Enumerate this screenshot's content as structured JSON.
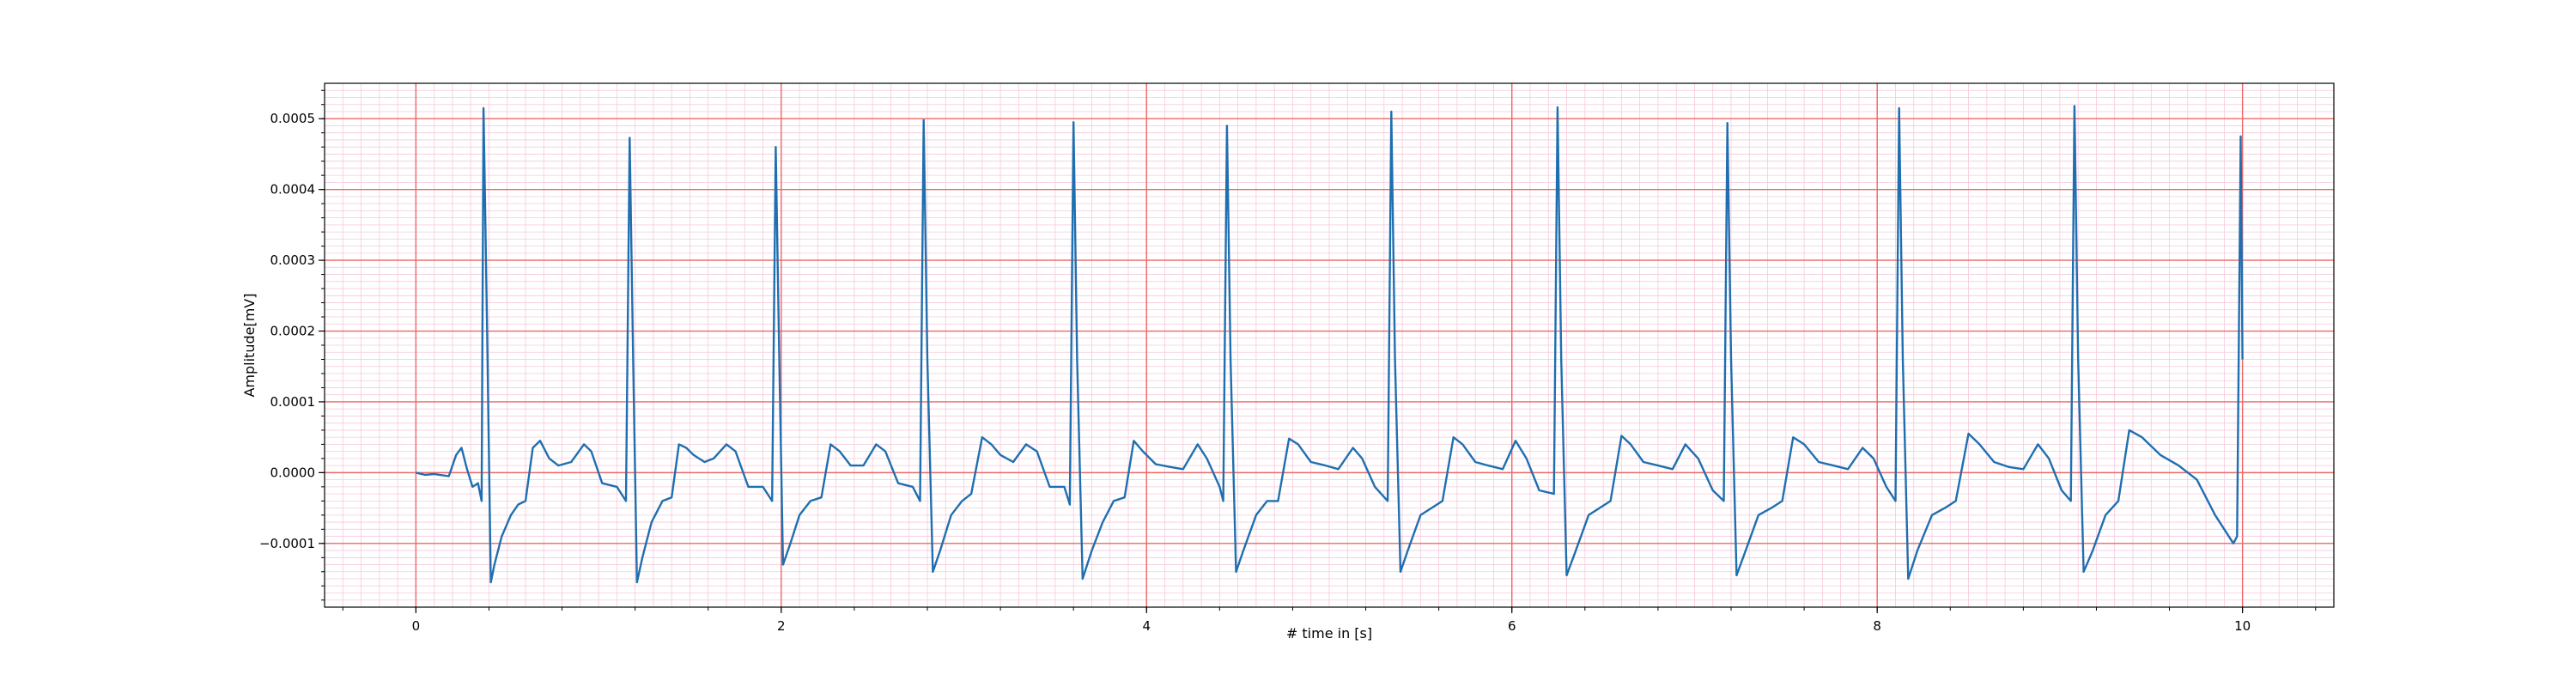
{
  "chart_data": {
    "type": "line",
    "title": "",
    "xlabel": "# time in [s]",
    "ylabel": "Amplitude[mV]",
    "xlim": [
      -0.5,
      10.5
    ],
    "ylim": [
      -0.00019,
      0.00055
    ],
    "x_ticks": [
      0,
      2,
      4,
      6,
      8,
      10
    ],
    "x_tick_labels": [
      "0",
      "2",
      "4",
      "6",
      "8",
      "10"
    ],
    "y_ticks": [
      -0.0001,
      0.0,
      0.0001,
      0.0002,
      0.0003,
      0.0004,
      0.0005
    ],
    "y_tick_labels": [
      "−0.0001",
      "0.0000",
      "0.0001",
      "0.0002",
      "0.0003",
      "0.0004",
      "0.0005"
    ],
    "grid": {
      "major": true,
      "minor": true,
      "major_x_step": 2,
      "major_y_step": 0.0001,
      "minor_x_step": 0.1,
      "minor_y_step": 1e-05
    },
    "colors": {
      "line": "#1f6fb0",
      "major_grid": "#ee6666",
      "minor_grid": "#f6c9dc",
      "axes": "#000000"
    },
    "r_peaks": [
      {
        "t": 0.37,
        "amp": 0.000515
      },
      {
        "t": 1.17,
        "amp": 0.000473
      },
      {
        "t": 1.97,
        "amp": 0.00046
      },
      {
        "t": 2.78,
        "amp": 0.000498
      },
      {
        "t": 3.6,
        "amp": 0.000495
      },
      {
        "t": 4.44,
        "amp": 0.00049
      },
      {
        "t": 5.34,
        "amp": 0.00051
      },
      {
        "t": 6.25,
        "amp": 0.000516
      },
      {
        "t": 7.18,
        "amp": 0.000494
      },
      {
        "t": 8.12,
        "amp": 0.000515
      },
      {
        "t": 9.08,
        "amp": 0.000518
      },
      {
        "t": 9.99,
        "amp": 0.000475
      }
    ],
    "series": [
      {
        "values": [
          [
            0.0,
            0.0
          ],
          [
            0.05,
            -3e-06
          ],
          [
            0.1,
            -2e-06
          ],
          [
            0.18,
            -5e-06
          ],
          [
            0.22,
            2.5e-05
          ],
          [
            0.25,
            3.5e-05
          ],
          [
            0.28,
            5e-06
          ],
          [
            0.31,
            -2e-05
          ],
          [
            0.34,
            -1.5e-05
          ],
          [
            0.36,
            -4e-05
          ],
          [
            0.37,
            0.000515
          ],
          [
            0.39,
            0.0002
          ],
          [
            0.41,
            -0.000155
          ],
          [
            0.43,
            -0.00013
          ],
          [
            0.47,
            -9e-05
          ],
          [
            0.52,
            -6e-05
          ],
          [
            0.56,
            -4.5e-05
          ],
          [
            0.6,
            -4e-05
          ],
          [
            0.64,
            3.5e-05
          ],
          [
            0.68,
            4.5e-05
          ],
          [
            0.73,
            2e-05
          ],
          [
            0.78,
            1e-05
          ],
          [
            0.85,
            1.5e-05
          ],
          [
            0.92,
            4e-05
          ],
          [
            0.96,
            3e-05
          ],
          [
            1.02,
            -1.5e-05
          ],
          [
            1.1,
            -2e-05
          ],
          [
            1.15,
            -4e-05
          ],
          [
            1.17,
            0.000473
          ],
          [
            1.19,
            0.00015
          ],
          [
            1.21,
            -0.000155
          ],
          [
            1.24,
            -0.00012
          ],
          [
            1.29,
            -7e-05
          ],
          [
            1.35,
            -4e-05
          ],
          [
            1.4,
            -3.5e-05
          ],
          [
            1.44,
            4e-05
          ],
          [
            1.48,
            3.5e-05
          ],
          [
            1.52,
            2.5e-05
          ],
          [
            1.58,
            1.5e-05
          ],
          [
            1.63,
            2e-05
          ],
          [
            1.7,
            4e-05
          ],
          [
            1.75,
            3e-05
          ],
          [
            1.82,
            -2e-05
          ],
          [
            1.9,
            -2e-05
          ],
          [
            1.95,
            -4e-05
          ],
          [
            1.97,
            0.00046
          ],
          [
            1.99,
            0.00015
          ],
          [
            2.01,
            -0.00013
          ],
          [
            2.05,
            -0.0001
          ],
          [
            2.1,
            -6e-05
          ],
          [
            2.16,
            -4e-05
          ],
          [
            2.22,
            -3.5e-05
          ],
          [
            2.27,
            4e-05
          ],
          [
            2.32,
            3e-05
          ],
          [
            2.38,
            1e-05
          ],
          [
            2.45,
            1e-05
          ],
          [
            2.52,
            4e-05
          ],
          [
            2.57,
            3e-05
          ],
          [
            2.64,
            -1.5e-05
          ],
          [
            2.72,
            -2e-05
          ],
          [
            2.76,
            -4e-05
          ],
          [
            2.78,
            0.000498
          ],
          [
            2.8,
            0.00016
          ],
          [
            2.83,
            -0.00014
          ],
          [
            2.87,
            -0.00011
          ],
          [
            2.93,
            -6e-05
          ],
          [
            2.99,
            -4e-05
          ],
          [
            3.04,
            -3e-05
          ],
          [
            3.1,
            5e-05
          ],
          [
            3.15,
            4e-05
          ],
          [
            3.2,
            2.5e-05
          ],
          [
            3.27,
            1.5e-05
          ],
          [
            3.34,
            4e-05
          ],
          [
            3.4,
            3e-05
          ],
          [
            3.47,
            -2e-05
          ],
          [
            3.55,
            -2e-05
          ],
          [
            3.58,
            -4.5e-05
          ],
          [
            3.6,
            0.000495
          ],
          [
            3.62,
            0.00016
          ],
          [
            3.65,
            -0.00015
          ],
          [
            3.7,
            -0.00011
          ],
          [
            3.76,
            -7e-05
          ],
          [
            3.82,
            -4e-05
          ],
          [
            3.88,
            -3.5e-05
          ],
          [
            3.93,
            4.5e-05
          ],
          [
            3.98,
            3e-05
          ],
          [
            4.05,
            1.2e-05
          ],
          [
            4.13,
            8e-06
          ],
          [
            4.2,
            5e-06
          ],
          [
            4.28,
            4e-05
          ],
          [
            4.33,
            2e-05
          ],
          [
            4.4,
            -2e-05
          ],
          [
            4.42,
            -4e-05
          ],
          [
            4.44,
            0.00049
          ],
          [
            4.46,
            0.00016
          ],
          [
            4.49,
            -0.00014
          ],
          [
            4.53,
            -0.00011
          ],
          [
            4.6,
            -6e-05
          ],
          [
            4.66,
            -4e-05
          ],
          [
            4.72,
            -4e-05
          ],
          [
            4.78,
            4.8e-05
          ],
          [
            4.83,
            4e-05
          ],
          [
            4.9,
            1.5e-05
          ],
          [
            4.98,
            1e-05
          ],
          [
            5.05,
            5e-06
          ],
          [
            5.13,
            3.5e-05
          ],
          [
            5.18,
            2e-05
          ],
          [
            5.25,
            -2e-05
          ],
          [
            5.32,
            -4e-05
          ],
          [
            5.34,
            0.00051
          ],
          [
            5.36,
            0.00016
          ],
          [
            5.39,
            -0.00014
          ],
          [
            5.43,
            -0.00011
          ],
          [
            5.5,
            -6e-05
          ],
          [
            5.56,
            -5e-05
          ],
          [
            5.62,
            -4e-05
          ],
          [
            5.68,
            5e-05
          ],
          [
            5.73,
            4e-05
          ],
          [
            5.8,
            1.5e-05
          ],
          [
            5.87,
            1e-05
          ],
          [
            5.95,
            5e-06
          ],
          [
            6.02,
            4.5e-05
          ],
          [
            6.08,
            2e-05
          ],
          [
            6.15,
            -2.5e-05
          ],
          [
            6.23,
            -3e-05
          ],
          [
            6.25,
            0.000516
          ],
          [
            6.27,
            0.00016
          ],
          [
            6.3,
            -0.000145
          ],
          [
            6.35,
            -0.00011
          ],
          [
            6.42,
            -6e-05
          ],
          [
            6.48,
            -5e-05
          ],
          [
            6.54,
            -4e-05
          ],
          [
            6.6,
            5.2e-05
          ],
          [
            6.65,
            4e-05
          ],
          [
            6.72,
            1.5e-05
          ],
          [
            6.8,
            1e-05
          ],
          [
            6.88,
            5e-06
          ],
          [
            6.95,
            4e-05
          ],
          [
            7.02,
            2e-05
          ],
          [
            7.1,
            -2.5e-05
          ],
          [
            7.16,
            -4e-05
          ],
          [
            7.18,
            0.000494
          ],
          [
            7.2,
            0.00016
          ],
          [
            7.23,
            -0.000145
          ],
          [
            7.28,
            -0.00011
          ],
          [
            7.35,
            -6e-05
          ],
          [
            7.42,
            -5e-05
          ],
          [
            7.48,
            -4e-05
          ],
          [
            7.54,
            5e-05
          ],
          [
            7.6,
            4e-05
          ],
          [
            7.68,
            1.5e-05
          ],
          [
            7.76,
            1e-05
          ],
          [
            7.84,
            5e-06
          ],
          [
            7.92,
            3.5e-05
          ],
          [
            7.98,
            2e-05
          ],
          [
            8.05,
            -2e-05
          ],
          [
            8.1,
            -4e-05
          ],
          [
            8.12,
            0.000515
          ],
          [
            8.14,
            0.00016
          ],
          [
            8.17,
            -0.00015
          ],
          [
            8.22,
            -0.00011
          ],
          [
            8.3,
            -6e-05
          ],
          [
            8.37,
            -5e-05
          ],
          [
            8.43,
            -4e-05
          ],
          [
            8.5,
            5.5e-05
          ],
          [
            8.56,
            4e-05
          ],
          [
            8.64,
            1.5e-05
          ],
          [
            8.72,
            8e-06
          ],
          [
            8.8,
            5e-06
          ],
          [
            8.88,
            4e-05
          ],
          [
            8.94,
            2e-05
          ],
          [
            9.01,
            -2.5e-05
          ],
          [
            9.06,
            -4e-05
          ],
          [
            9.08,
            0.000518
          ],
          [
            9.1,
            0.00016
          ],
          [
            9.13,
            -0.00014
          ],
          [
            9.18,
            -0.00011
          ],
          [
            9.25,
            -6e-05
          ],
          [
            9.32,
            -4e-05
          ],
          [
            9.38,
            6e-05
          ],
          [
            9.45,
            5e-05
          ],
          [
            9.55,
            2.5e-05
          ],
          [
            9.65,
            1e-05
          ],
          [
            9.75,
            -1e-05
          ],
          [
            9.85,
            -6e-05
          ],
          [
            9.95,
            -0.0001
          ],
          [
            9.97,
            -9e-05
          ],
          [
            9.99,
            0.000475
          ],
          [
            10.0,
            0.00016
          ]
        ]
      }
    ]
  }
}
